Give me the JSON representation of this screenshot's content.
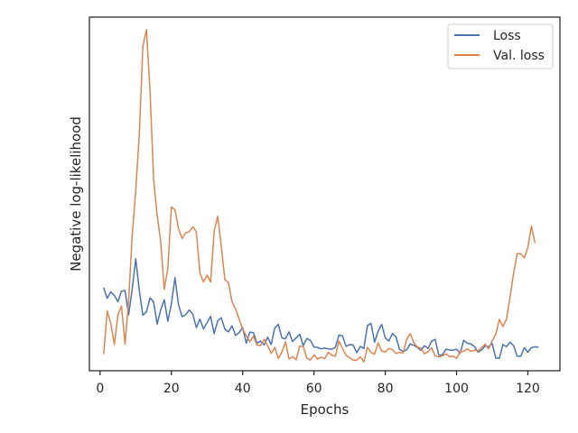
{
  "chart_data": {
    "type": "line",
    "title": "",
    "xlabel": "Epochs",
    "ylabel": "Negative log-likelihood",
    "xlim": [
      -3,
      129
    ],
    "ylim": [
      0,
      100
    ],
    "x_ticks": [
      0,
      20,
      40,
      60,
      80,
      100,
      120
    ],
    "y_ticks_labeled": false,
    "grid": false,
    "legend_position": "top-right",
    "series": [
      {
        "name": "Loss",
        "color": "#4c72b0",
        "values": [
          23.5,
          20.5,
          22.3,
          21.3,
          19.5,
          22.5,
          22.7,
          15.8,
          23.0,
          31.7,
          22.6,
          15.7,
          16.7,
          20.6,
          19.5,
          13.2,
          17.2,
          20.1,
          14.0,
          18.9,
          26.3,
          18.7,
          15.3,
          15.8,
          17.2,
          16.0,
          12.2,
          14.6,
          11.8,
          13.6,
          15.4,
          10.5,
          14.1,
          15.0,
          11.8,
          11.0,
          12.7,
          10.0,
          10.8,
          12.2,
          7.8,
          10.9,
          10.8,
          7.8,
          8.4,
          7.3,
          9.5,
          7.4,
          12.1,
          13.1,
          9.3,
          9.0,
          11.0,
          8.3,
          9.3,
          10.3,
          7.1,
          9.1,
          8.6,
          6.7,
          6.6,
          6.2,
          6.4,
          6.2,
          6.1,
          6.6,
          10.1,
          9.9,
          6.9,
          7.4,
          7.3,
          5.1,
          6.9,
          6.3,
          12.8,
          13.4,
          8.1,
          11.2,
          13.1,
          9.3,
          8.4,
          10.5,
          9.6,
          6.0,
          5.5,
          5.9,
          7.6,
          7.2,
          6.6,
          5.8,
          7.1,
          6.3,
          8.4,
          8.9,
          4.4,
          4.5,
          6.1,
          5.9,
          5.8,
          6.1,
          4.9,
          8.6,
          7.8,
          7.6,
          6.9,
          5.3,
          5.8,
          7.0,
          6.8,
          7.7,
          3.6,
          3.5,
          7.4,
          6.8,
          8.1,
          7.1,
          4.1,
          4.1,
          6.5,
          5.3,
          6.5,
          6.8,
          6.6
        ]
      },
      {
        "name": "Val. loss",
        "color": "#dd8452",
        "values": [
          4.7,
          16.9,
          13.4,
          7.4,
          15.8,
          18.3,
          7.5,
          19.8,
          38.2,
          50.9,
          66.9,
          91.7,
          96.5,
          79.3,
          54.3,
          44.0,
          36.5,
          23.0,
          29.0,
          46.3,
          45.5,
          40.2,
          37.4,
          39.0,
          39.3,
          40.7,
          39.3,
          27.6,
          25.1,
          27.0,
          25.1,
          39.4,
          43.7,
          35.1,
          25.8,
          24.9,
          19.5,
          17.5,
          14.6,
          11.8,
          9.9,
          8.2,
          9.8,
          7.3,
          7.1,
          8.9,
          7.1,
          4.9,
          6.6,
          3.5,
          5.3,
          8.2,
          3.3,
          4.0,
          3.1,
          7.0,
          6.8,
          3.6,
          3.0,
          4.5,
          3.3,
          3.8,
          3.4,
          5.2,
          4.4,
          4.1,
          8.4,
          6.3,
          4.4,
          3.7,
          3.0,
          3.0,
          3.9,
          2.5,
          6.6,
          5.2,
          4.7,
          7.9,
          5.6,
          5.3,
          6.3,
          6.0,
          4.9,
          5.2,
          5.0,
          8.9,
          10.5,
          8.0,
          6.7,
          6.4,
          4.8,
          5.4,
          6.5,
          4.2,
          3.9,
          4.2,
          4.8,
          4.0,
          4.1,
          3.5,
          5.4,
          5.5,
          6.2,
          5.5,
          5.8,
          5.6,
          6.5,
          7.5,
          6.2,
          8.5,
          10.3,
          14.5,
          12.5,
          14.6,
          20.8,
          27.6,
          33.1,
          33.1,
          31.9,
          34.9,
          40.9,
          36.1
        ]
      }
    ]
  }
}
